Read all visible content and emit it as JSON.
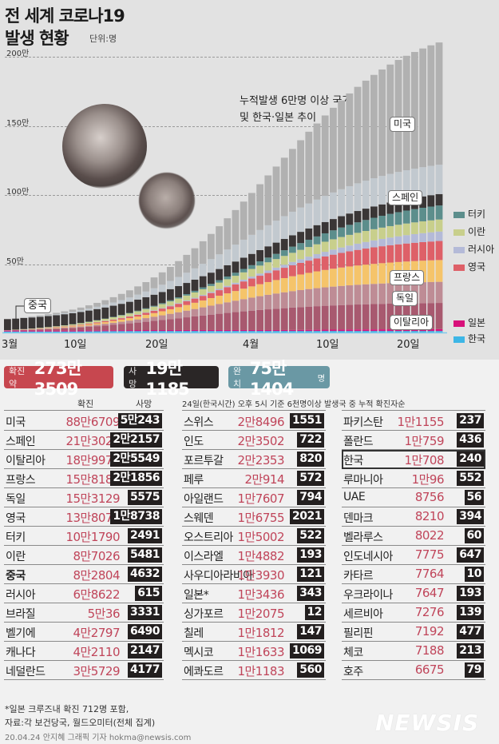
{
  "header": {
    "title_line1": "전 세계 코로나19",
    "title_line2": "발생 현황",
    "unit": "단위:명",
    "chart_subtitle_line1": "누적발생 6만명 이상 국가",
    "chart_subtitle_line2": "및 한국·일본 추이"
  },
  "chart_data": {
    "type": "bar",
    "stacked": true,
    "title": "전 세계 코로나19 발생 현황",
    "subtitle": "누적발생 6만명 이상 국가 및 한국·일본 추이",
    "ylabel": "단위:명",
    "yticks": [
      "200만",
      "150만",
      "100만",
      "50만"
    ],
    "ytick_values": [
      2000000,
      1500000,
      1000000,
      500000
    ],
    "ylim": [
      0,
      2000000
    ],
    "grid": true,
    "xticks": [
      {
        "label": "3월",
        "index": 0
      },
      {
        "label": "10일",
        "index": 9
      },
      {
        "label": "20일",
        "index": 19
      },
      {
        "label": "4월",
        "index": 31
      },
      {
        "label": "10일",
        "index": 40
      },
      {
        "label": "20일",
        "index": 50
      }
    ],
    "x_range": "3월 1일 ~ 4월 23일 (일별 누적)",
    "n_days": 54,
    "stack_order_bottom_to_top": [
      "한국",
      "일본",
      "이탈리아",
      "독일",
      "프랑스",
      "영국",
      "러시아",
      "이란",
      "터키",
      "중국",
      "스페인",
      "미국"
    ],
    "colors": {
      "한국": "#3db6e6",
      "일본": "#d8107a",
      "이탈리아": "#a8596f",
      "독일": "#be8c95",
      "프랑스": "#f5c46a",
      "영국": "#de6068",
      "러시아": "#b4bad8",
      "이란": "#c8cf8c",
      "터키": "#5c8e8c",
      "중국": "#3a3636",
      "스페인": "#c2c9cf",
      "미국": "#b1b1b1"
    },
    "series_final_values_approx": {
      "미국": 886709,
      "스페인": 213024,
      "이탈리아": 189973,
      "프랑스": 158183,
      "독일": 153129,
      "영국": 138078,
      "터키": 101790,
      "이란": 87026,
      "중국": 82804,
      "러시아": 68622,
      "일본": 13436,
      "한국": 10708
    },
    "series_start_values_approx": {
      "미국": 70,
      "스페인": 80,
      "이탈리아": 1700,
      "프랑스": 130,
      "독일": 130,
      "영국": 36,
      "터키": 0,
      "이란": 980,
      "중국": 79900,
      "러시아": 2,
      "일본": 250,
      "한국": 3700
    },
    "labels_on_chart": [
      "미국",
      "스페인",
      "프랑스",
      "독일",
      "이탈리아",
      "중국"
    ],
    "legend": [
      "터키",
      "이란",
      "러시아",
      "영국",
      "일본",
      "한국"
    ],
    "legend_position": "right"
  },
  "summary": {
    "confirmed_label": "확진 약",
    "confirmed_value": "273만3509",
    "deaths_label": "사망",
    "deaths_value": "19만1185",
    "recovered_label": "완치",
    "recovered_value": "75만1404",
    "recovered_unit": "명",
    "confirmed_color": "#c7474f",
    "deaths_color": "#2a2626",
    "recovered_color": "#6a98a4"
  },
  "table": {
    "note": "24일(한국시간) 오후 5시 기준 6천명이상 발생국 중 누적 확진자순",
    "col_confirmed": "확진",
    "col_deaths": "사망",
    "columns": [
      [
        {
          "country": "미국",
          "confirmed": "88만6709",
          "deaths": "5만243"
        },
        {
          "country": "스페인",
          "confirmed": "21만3024",
          "deaths": "2만2157"
        },
        {
          "country": "이탈리아",
          "confirmed": "18만9973",
          "deaths": "2만5549"
        },
        {
          "country": "프랑스",
          "confirmed": "15만8183",
          "deaths": "2만1856"
        },
        {
          "country": "독일",
          "confirmed": "15만3129",
          "deaths": "5575"
        },
        {
          "country": "영국",
          "confirmed": "13만8078",
          "deaths": "1만8738"
        },
        {
          "country": "터키",
          "confirmed": "10만1790",
          "deaths": "2491"
        },
        {
          "country": "이란",
          "confirmed": "8만7026",
          "deaths": "5481"
        },
        {
          "country": "중국",
          "confirmed": "8만2804",
          "deaths": "4632"
        },
        {
          "country": "러시아",
          "confirmed": "6만8622",
          "deaths": "615"
        },
        {
          "country": "브라질",
          "confirmed": "5만36",
          "deaths": "3331"
        },
        {
          "country": "벨기에",
          "confirmed": "4만2797",
          "deaths": "6490"
        },
        {
          "country": "캐나다",
          "confirmed": "4만2110",
          "deaths": "2147"
        },
        {
          "country": "네덜란드",
          "confirmed": "3만5729",
          "deaths": "4177"
        }
      ],
      [
        {
          "country": "스위스",
          "confirmed": "2만8496",
          "deaths": "1551"
        },
        {
          "country": "인도",
          "confirmed": "2만3502",
          "deaths": "722"
        },
        {
          "country": "포르투갈",
          "confirmed": "2만2353",
          "deaths": "820"
        },
        {
          "country": "페루",
          "confirmed": "2만914",
          "deaths": "572"
        },
        {
          "country": "아일랜드",
          "confirmed": "1만7607",
          "deaths": "794"
        },
        {
          "country": "스웨덴",
          "confirmed": "1만6755",
          "deaths": "2021"
        },
        {
          "country": "오스트리아",
          "confirmed": "1만5002",
          "deaths": "522"
        },
        {
          "country": "이스라엘",
          "confirmed": "1만4882",
          "deaths": "193"
        },
        {
          "country": "사우디아라비아",
          "confirmed": "1만3930",
          "deaths": "121"
        },
        {
          "country": "일본*",
          "confirmed": "1만3436",
          "deaths": "343"
        },
        {
          "country": "싱가포르",
          "confirmed": "1만2075",
          "deaths": "12"
        },
        {
          "country": "칠레",
          "confirmed": "1만1812",
          "deaths": "147"
        },
        {
          "country": "멕시코",
          "confirmed": "1만1633",
          "deaths": "1069"
        },
        {
          "country": "에콰도르",
          "confirmed": "1만1183",
          "deaths": "560"
        }
      ],
      [
        {
          "country": "파키스탄",
          "confirmed": "1만1155",
          "deaths": "237"
        },
        {
          "country": "폴란드",
          "confirmed": "1만759",
          "deaths": "436"
        },
        {
          "country": "한국",
          "confirmed": "1만708",
          "deaths": "240",
          "highlight": true
        },
        {
          "country": "루마니아",
          "confirmed": "1만96",
          "deaths": "552"
        },
        {
          "country": "UAE",
          "confirmed": "8756",
          "deaths": "56"
        },
        {
          "country": "덴마크",
          "confirmed": "8210",
          "deaths": "394"
        },
        {
          "country": "벨라루스",
          "confirmed": "8022",
          "deaths": "60"
        },
        {
          "country": "인도네시아",
          "confirmed": "7775",
          "deaths": "647"
        },
        {
          "country": "카타르",
          "confirmed": "7764",
          "deaths": "10"
        },
        {
          "country": "우크라이나",
          "confirmed": "7647",
          "deaths": "193"
        },
        {
          "country": "세르비아",
          "confirmed": "7276",
          "deaths": "139"
        },
        {
          "country": "필리핀",
          "confirmed": "7192",
          "deaths": "477"
        },
        {
          "country": "체코",
          "confirmed": "7188",
          "deaths": "213"
        },
        {
          "country": "호주",
          "confirmed": "6675",
          "deaths": "79"
        }
      ]
    ]
  },
  "footer": {
    "note1": "*일본 크루즈내 확진 712명 포함,",
    "note2": "자료:각 보건당국, 월드오미터(전체 집계)",
    "credit": "20.04.24 안지혜 그래픽 기자 hokma@newsis.com",
    "logo": "NEWSIS"
  }
}
